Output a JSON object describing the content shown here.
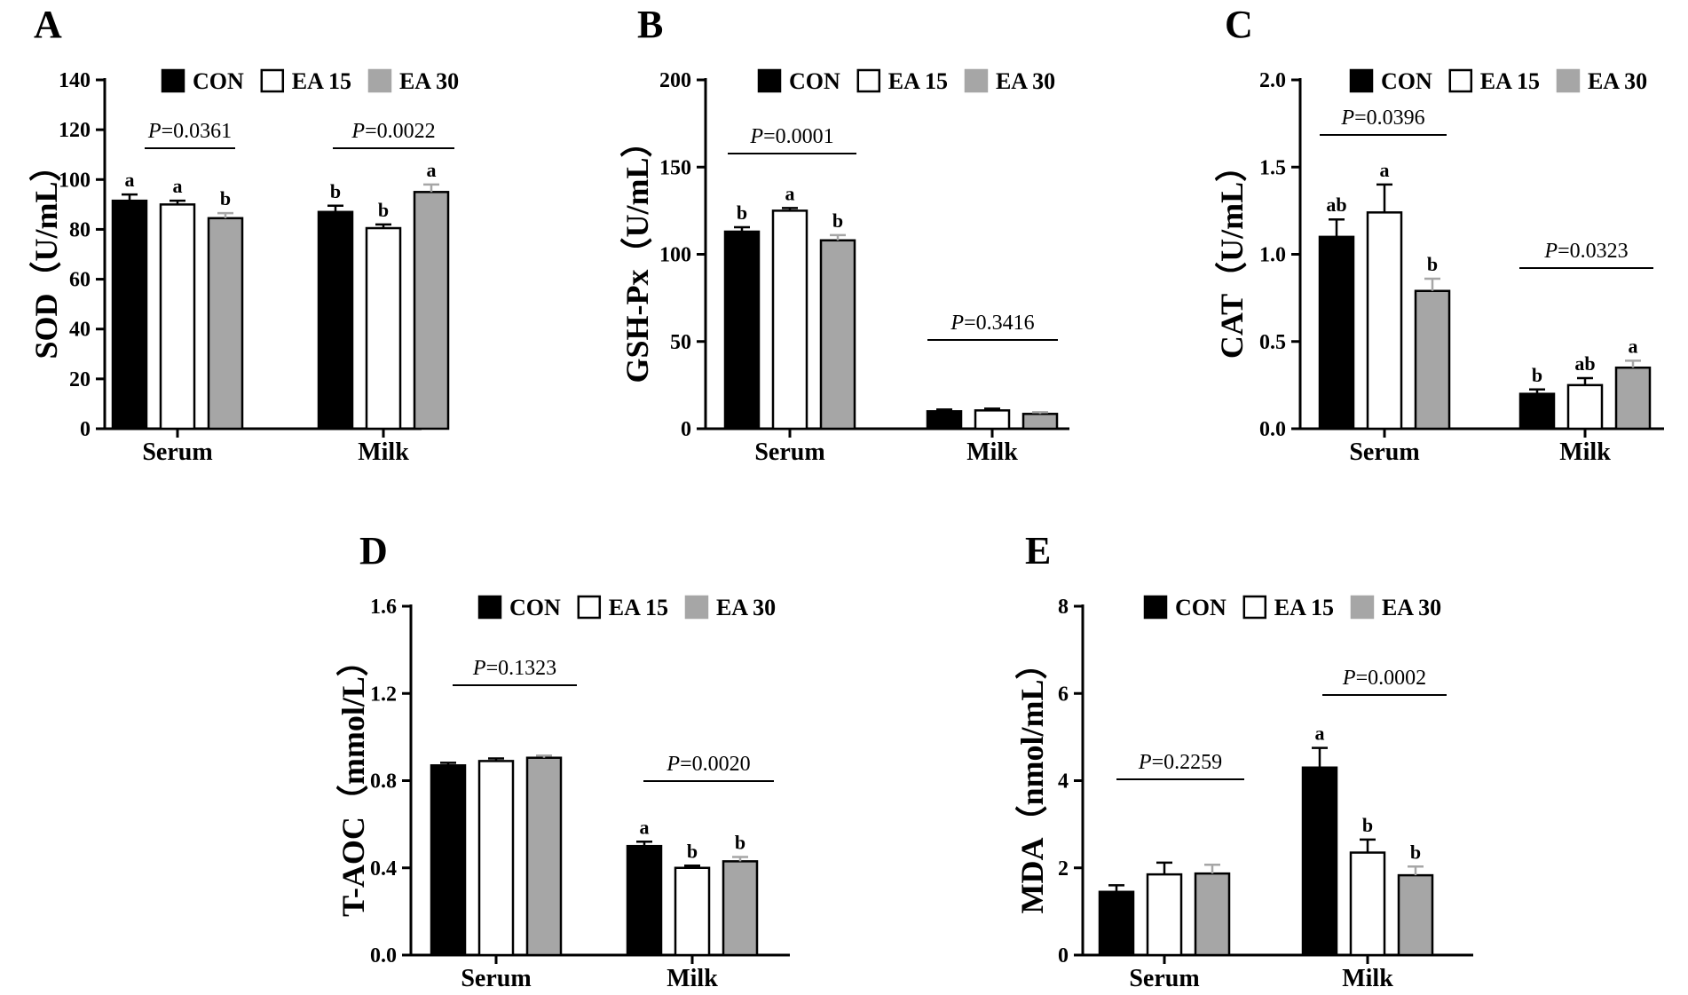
{
  "legend": [
    "CON",
    "EA 15",
    "EA 30"
  ],
  "colors": {
    "CON": "#000000",
    "EA 15": "#ffffff",
    "EA 30": "#a6a6a6",
    "axis": "#000000"
  },
  "chart_data": [
    {
      "panel": "A",
      "type": "bar",
      "ylabel": "SOD（U/mL）",
      "categories": [
        "Serum",
        "Milk"
      ],
      "ylim": [
        0,
        140
      ],
      "yticks": [
        "0",
        "20",
        "40",
        "60",
        "80",
        "100",
        "120",
        "140"
      ],
      "series": [
        {
          "name": "CON",
          "values": [
            91.5,
            87
          ],
          "errors": [
            2.5,
            2.5
          ],
          "letters": [
            "a",
            "b"
          ]
        },
        {
          "name": "EA 15",
          "values": [
            90,
            80.5
          ],
          "errors": [
            1.5,
            1.5
          ],
          "letters": [
            "a",
            "b"
          ]
        },
        {
          "name": "EA 30",
          "values": [
            84.5,
            95
          ],
          "errors": [
            2,
            3
          ],
          "letters": [
            "b",
            "a"
          ]
        }
      ],
      "pvalues": [
        {
          "prefix": "P",
          "value": "=0.0361"
        },
        {
          "prefix": "P",
          "value": "=0.0022"
        }
      ]
    },
    {
      "panel": "B",
      "type": "bar",
      "ylabel": "GSH-Px（U/mL）",
      "categories": [
        "Serum",
        "Milk"
      ],
      "ylim": [
        0,
        200
      ],
      "yticks": [
        "0",
        "50",
        "100",
        "150",
        "200"
      ],
      "series": [
        {
          "name": "CON",
          "values": [
            113,
            10
          ],
          "errors": [
            2.5,
            1
          ],
          "letters": [
            "b",
            ""
          ]
        },
        {
          "name": "EA 15",
          "values": [
            125,
            10.5
          ],
          "errors": [
            1.5,
            1
          ],
          "letters": [
            "a",
            ""
          ]
        },
        {
          "name": "EA 30",
          "values": [
            108,
            8.5
          ],
          "errors": [
            3,
            1
          ],
          "letters": [
            "b",
            ""
          ]
        }
      ],
      "pvalues": [
        {
          "prefix": "P",
          "value": "=0.0001"
        },
        {
          "prefix": "P",
          "value": "=0.3416"
        }
      ]
    },
    {
      "panel": "C",
      "type": "bar",
      "ylabel": "CAT（U/mL）",
      "categories": [
        "Serum",
        "Milk"
      ],
      "ylim": [
        0,
        2.0
      ],
      "yticks": [
        "0.0",
        "0.5",
        "1.0",
        "1.5",
        "2.0"
      ],
      "series": [
        {
          "name": "CON",
          "values": [
            1.1,
            0.2
          ],
          "errors": [
            0.1,
            0.025
          ],
          "letters": [
            "ab",
            "b"
          ]
        },
        {
          "name": "EA 15",
          "values": [
            1.24,
            0.25
          ],
          "errors": [
            0.16,
            0.04
          ],
          "letters": [
            "a",
            "ab"
          ]
        },
        {
          "name": "EA 30",
          "values": [
            0.79,
            0.35
          ],
          "errors": [
            0.07,
            0.04
          ],
          "letters": [
            "b",
            "a"
          ]
        }
      ],
      "pvalues": [
        {
          "prefix": "P",
          "value": "=0.0396"
        },
        {
          "prefix": "P",
          "value": "=0.0323"
        }
      ]
    },
    {
      "panel": "D",
      "type": "bar",
      "ylabel": "T-AOC（mmol/L）",
      "categories": [
        "Serum",
        "Milk"
      ],
      "ylim": [
        0,
        1.6
      ],
      "yticks": [
        "0.0",
        "0.4",
        "0.8",
        "1.2",
        "1.6"
      ],
      "series": [
        {
          "name": "CON",
          "values": [
            0.87,
            0.5
          ],
          "errors": [
            0.012,
            0.02
          ],
          "letters": [
            "",
            "a"
          ]
        },
        {
          "name": "EA 15",
          "values": [
            0.89,
            0.4
          ],
          "errors": [
            0.012,
            0.01
          ],
          "letters": [
            "",
            "b"
          ]
        },
        {
          "name": "EA 30",
          "values": [
            0.905,
            0.43
          ],
          "errors": [
            0.01,
            0.02
          ],
          "letters": [
            "",
            "b"
          ]
        }
      ],
      "pvalues": [
        {
          "prefix": "P",
          "value": "=0.1323"
        },
        {
          "prefix": "P",
          "value": "=0.0020"
        }
      ]
    },
    {
      "panel": "E",
      "type": "bar",
      "ylabel": "MDA（nmol/mL）",
      "categories": [
        "Serum",
        "Milk"
      ],
      "ylim": [
        0,
        8
      ],
      "yticks": [
        "0",
        "2",
        "4",
        "6",
        "8"
      ],
      "series": [
        {
          "name": "CON",
          "values": [
            1.45,
            4.3
          ],
          "errors": [
            0.15,
            0.45
          ],
          "letters": [
            "",
            "a"
          ]
        },
        {
          "name": "EA 15",
          "values": [
            1.85,
            2.35
          ],
          "errors": [
            0.27,
            0.3
          ],
          "letters": [
            "",
            "b"
          ]
        },
        {
          "name": "EA 30",
          "values": [
            1.87,
            1.83
          ],
          "errors": [
            0.2,
            0.2
          ],
          "letters": [
            "",
            "b"
          ]
        }
      ],
      "pvalues": [
        {
          "prefix": "P",
          "value": "=0.2259"
        },
        {
          "prefix": "P",
          "value": "=0.0002"
        }
      ]
    }
  ]
}
